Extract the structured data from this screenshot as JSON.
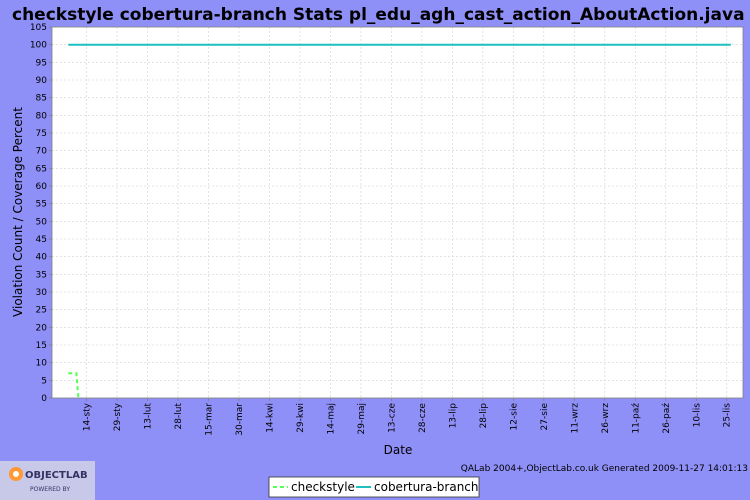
{
  "chart_data": {
    "type": "line",
    "title": "checkstyle cobertura-branch  Stats pl_edu_agh_cast_action_AboutAction.java",
    "xlabel": "Date",
    "ylabel": "Violation Count / Coverage Percent",
    "ylim": [
      0,
      105
    ],
    "yticks": [
      0,
      5,
      10,
      15,
      20,
      25,
      30,
      35,
      40,
      45,
      50,
      55,
      60,
      65,
      70,
      75,
      80,
      85,
      90,
      95,
      100,
      105
    ],
    "xlim": [
      "2008-12-28",
      "2009-12-03"
    ],
    "xticks": [
      {
        "date": "2009-01-14",
        "label": "14-sty"
      },
      {
        "date": "2009-01-29",
        "label": "29-sty"
      },
      {
        "date": "2009-02-13",
        "label": "13-lut"
      },
      {
        "date": "2009-02-28",
        "label": "28-lut"
      },
      {
        "date": "2009-03-15",
        "label": "15-mar"
      },
      {
        "date": "2009-03-30",
        "label": "30-mar"
      },
      {
        "date": "2009-04-14",
        "label": "14-kwi"
      },
      {
        "date": "2009-04-29",
        "label": "29-kwi"
      },
      {
        "date": "2009-05-14",
        "label": "14-maj"
      },
      {
        "date": "2009-05-29",
        "label": "29-maj"
      },
      {
        "date": "2009-06-13",
        "label": "13-cze"
      },
      {
        "date": "2009-06-28",
        "label": "28-cze"
      },
      {
        "date": "2009-07-13",
        "label": "13-lip"
      },
      {
        "date": "2009-07-28",
        "label": "28-lip"
      },
      {
        "date": "2009-08-12",
        "label": "12-sie"
      },
      {
        "date": "2009-08-27",
        "label": "27-sie"
      },
      {
        "date": "2009-09-11",
        "label": "11-wrz"
      },
      {
        "date": "2009-09-26",
        "label": "26-wrz"
      },
      {
        "date": "2009-10-11",
        "label": "11-paź"
      },
      {
        "date": "2009-10-26",
        "label": "26-paź"
      },
      {
        "date": "2009-11-10",
        "label": "10-lis"
      },
      {
        "date": "2009-11-25",
        "label": "25-lis"
      }
    ],
    "grid": true,
    "legend": "bottom-center",
    "series": [
      {
        "name": "checkstyle",
        "color": "#55ff55",
        "style": "dashed",
        "points": [
          {
            "x": "2009-01-05",
            "y": 7
          },
          {
            "x": "2009-01-09",
            "y": 7
          },
          {
            "x": "2009-01-10",
            "y": 0
          }
        ]
      },
      {
        "name": "cobertura-branch",
        "color": "#1fbfbf",
        "style": "solid",
        "points": [
          {
            "x": "2009-01-05",
            "y": 100
          },
          {
            "x": "2009-11-27",
            "y": 100
          }
        ]
      }
    ]
  },
  "footer": {
    "credit": "QALab 2004+,ObjectLab.co.uk Generated 2009-11-27 14:01:13"
  },
  "logo": {
    "text": "OBJECTLAB",
    "subtext": "POWERED BY"
  }
}
